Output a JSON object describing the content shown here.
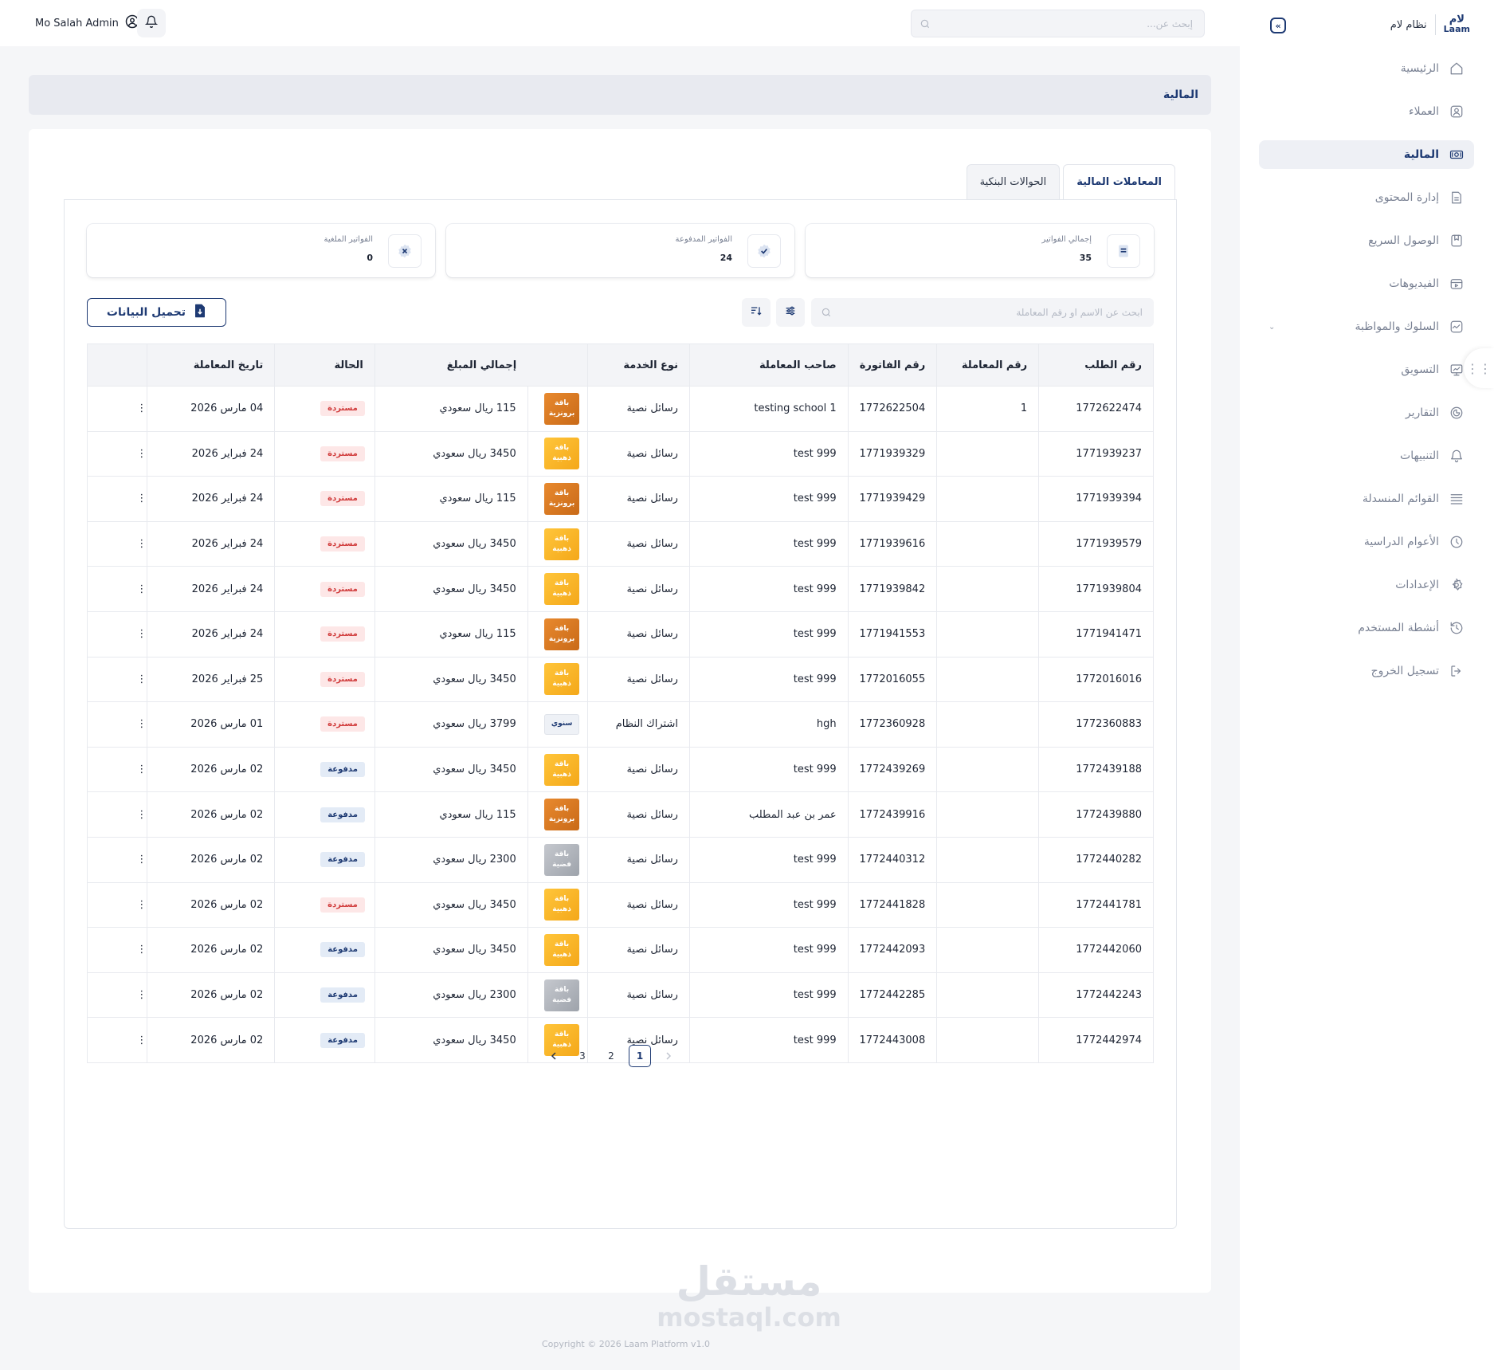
{
  "brand": {
    "logo_ar": "لام",
    "logo_en": "Laam",
    "name": "نظام لام"
  },
  "sidebar": {
    "items": [
      {
        "label": "الرئيسية",
        "icon": "home-icon"
      },
      {
        "label": "العملاء",
        "icon": "user-icon"
      },
      {
        "label": "المالية",
        "icon": "money-icon",
        "active": true
      },
      {
        "label": "إدارة المحتوى",
        "icon": "document-icon"
      },
      {
        "label": "الوصول السريع",
        "icon": "bookmark-icon"
      },
      {
        "label": "الفيديوهات",
        "icon": "video-icon"
      },
      {
        "label": "السلوك والمواظبة",
        "icon": "activity-icon",
        "has_children": true
      },
      {
        "label": "التسويق",
        "icon": "chart-icon"
      },
      {
        "label": "التقارير",
        "icon": "report-icon"
      },
      {
        "label": "التنبيهات",
        "icon": "bell-icon"
      },
      {
        "label": "القوائم المنسدلة",
        "icon": "list-icon"
      },
      {
        "label": "الأعوام الدراسية",
        "icon": "clock-icon"
      },
      {
        "label": "الإعدادات",
        "icon": "gear-icon"
      },
      {
        "label": "أنشطة المستخدم",
        "icon": "history-icon"
      },
      {
        "label": "تسجيل الخروج",
        "icon": "logout-icon"
      }
    ]
  },
  "topbar": {
    "search_placeholder": "إبحث عن...",
    "user_name": "Mo Salah Admin"
  },
  "page": {
    "title": "المالية"
  },
  "tabs": [
    {
      "label": "المعاملات المالية",
      "active": true
    },
    {
      "label": "الحوالات البنكية",
      "active": false
    }
  ],
  "stats": [
    {
      "label": "إجمالي الفواتير",
      "value": "35",
      "icon": "invoice-icon"
    },
    {
      "label": "الفواتير المدفوعة",
      "value": "24",
      "icon": "check-badge-icon"
    },
    {
      "label": "الفواتير الملغية",
      "value": "0",
      "icon": "cancel-badge-icon"
    }
  ],
  "toolbar": {
    "search_placeholder": "ابحث عن الاسم او رقم المعاملة",
    "download_label": "تحميل البيانات"
  },
  "table": {
    "headers": [
      "رقم الطلب",
      "رقم المعاملة",
      "رقم الفاتورة",
      "صاحب المعاملة",
      "نوع الخدمة",
      "",
      "إجمالي المبلغ",
      "الحالة",
      "تاريخ المعاملة",
      ""
    ],
    "rows": [
      {
        "order": "1772622474",
        "txn": "1",
        "invoice": "1772622504",
        "owner": "testing school 1",
        "service": "رسائل نصية",
        "pkg": "باقة برونزية",
        "pkg_type": "bronze",
        "amount": "115 ريال سعودي",
        "status": "مستردة",
        "status_type": "refunded",
        "date": "04 مارس 2026"
      },
      {
        "order": "1771939237",
        "txn": "",
        "invoice": "1771939329",
        "owner": "test 999",
        "service": "رسائل نصية",
        "pkg": "باقة ذهبية",
        "pkg_type": "gold",
        "amount": "3450 ريال سعودي",
        "status": "مستردة",
        "status_type": "refunded",
        "date": "24 فبراير 2026"
      },
      {
        "order": "1771939394",
        "txn": "",
        "invoice": "1771939429",
        "owner": "test 999",
        "service": "رسائل نصية",
        "pkg": "باقة برونزية",
        "pkg_type": "bronze",
        "amount": "115 ريال سعودي",
        "status": "مستردة",
        "status_type": "refunded",
        "date": "24 فبراير 2026"
      },
      {
        "order": "1771939579",
        "txn": "",
        "invoice": "1771939616",
        "owner": "test 999",
        "service": "رسائل نصية",
        "pkg": "باقة ذهبية",
        "pkg_type": "gold",
        "amount": "3450 ريال سعودي",
        "status": "مستردة",
        "status_type": "refunded",
        "date": "24 فبراير 2026"
      },
      {
        "order": "1771939804",
        "txn": "",
        "invoice": "1771939842",
        "owner": "test 999",
        "service": "رسائل نصية",
        "pkg": "باقة ذهبية",
        "pkg_type": "gold",
        "amount": "3450 ريال سعودي",
        "status": "مستردة",
        "status_type": "refunded",
        "date": "24 فبراير 2026"
      },
      {
        "order": "1771941471",
        "txn": "",
        "invoice": "1771941553",
        "owner": "test 999",
        "service": "رسائل نصية",
        "pkg": "باقة برونزية",
        "pkg_type": "bronze",
        "amount": "115 ريال سعودي",
        "status": "مستردة",
        "status_type": "refunded",
        "date": "24 فبراير 2026"
      },
      {
        "order": "1772016016",
        "txn": "",
        "invoice": "1772016055",
        "owner": "test 999",
        "service": "رسائل نصية",
        "pkg": "باقة ذهبية",
        "pkg_type": "gold",
        "amount": "3450 ريال سعودي",
        "status": "مستردة",
        "status_type": "refunded",
        "date": "25 فبراير 2026"
      },
      {
        "order": "1772360883",
        "txn": "",
        "invoice": "1772360928",
        "owner": "hgh",
        "service": "اشتراك النظام",
        "pkg": "سنوي",
        "pkg_type": "annual",
        "amount": "3799 ريال سعودي",
        "status": "مستردة",
        "status_type": "refunded",
        "date": "01 مارس 2026"
      },
      {
        "order": "1772439188",
        "txn": "",
        "invoice": "1772439269",
        "owner": "test 999",
        "service": "رسائل نصية",
        "pkg": "باقة ذهبية",
        "pkg_type": "gold",
        "amount": "3450 ريال سعودي",
        "status": "مدفوعة",
        "status_type": "paid",
        "date": "02 مارس 2026"
      },
      {
        "order": "1772439880",
        "txn": "",
        "invoice": "1772439916",
        "owner": "عمر بن عبد المطلب",
        "service": "رسائل نصية",
        "pkg": "باقة برونزية",
        "pkg_type": "bronze",
        "amount": "115 ريال سعودي",
        "status": "مدفوعة",
        "status_type": "paid",
        "date": "02 مارس 2026"
      },
      {
        "order": "1772440282",
        "txn": "",
        "invoice": "1772440312",
        "owner": "test 999",
        "service": "رسائل نصية",
        "pkg": "باقة فضية",
        "pkg_type": "silver",
        "amount": "2300 ريال سعودي",
        "status": "مدفوعة",
        "status_type": "paid",
        "date": "02 مارس 2026"
      },
      {
        "order": "1772441781",
        "txn": "",
        "invoice": "1772441828",
        "owner": "test 999",
        "service": "رسائل نصية",
        "pkg": "باقة ذهبية",
        "pkg_type": "gold",
        "amount": "3450 ريال سعودي",
        "status": "مستردة",
        "status_type": "refunded",
        "date": "02 مارس 2026"
      },
      {
        "order": "1772442060",
        "txn": "",
        "invoice": "1772442093",
        "owner": "test 999",
        "service": "رسائل نصية",
        "pkg": "باقة ذهبية",
        "pkg_type": "gold",
        "amount": "3450 ريال سعودي",
        "status": "مدفوعة",
        "status_type": "paid",
        "date": "02 مارس 2026"
      },
      {
        "order": "1772442243",
        "txn": "",
        "invoice": "1772442285",
        "owner": "test 999",
        "service": "رسائل نصية",
        "pkg": "باقة فضية",
        "pkg_type": "silver",
        "amount": "2300 ريال سعودي",
        "status": "مدفوعة",
        "status_type": "paid",
        "date": "02 مارس 2026"
      },
      {
        "order": "1772442974",
        "txn": "",
        "invoice": "1772443008",
        "owner": "test 999",
        "service": "رسائل نصية",
        "pkg": "باقة ذهبية",
        "pkg_type": "gold",
        "amount": "3450 ريال سعودي",
        "status": "مدفوعة",
        "status_type": "paid",
        "date": "02 مارس 2026"
      }
    ]
  },
  "pagination": {
    "pages": [
      "1",
      "2",
      "3"
    ],
    "current": "1"
  },
  "watermark": {
    "ar": "مستقل",
    "en": "mostaql.com"
  },
  "footer": {
    "copyright": "Copyright © 2026 Laam Platform v1.0"
  },
  "colors": {
    "primary": "#1e3a73",
    "refunded": "#d03a3a",
    "paid": "#1e3a73",
    "bronze": "#d97a22",
    "gold": "#f7b52a",
    "silver": "#b1b5bc"
  }
}
